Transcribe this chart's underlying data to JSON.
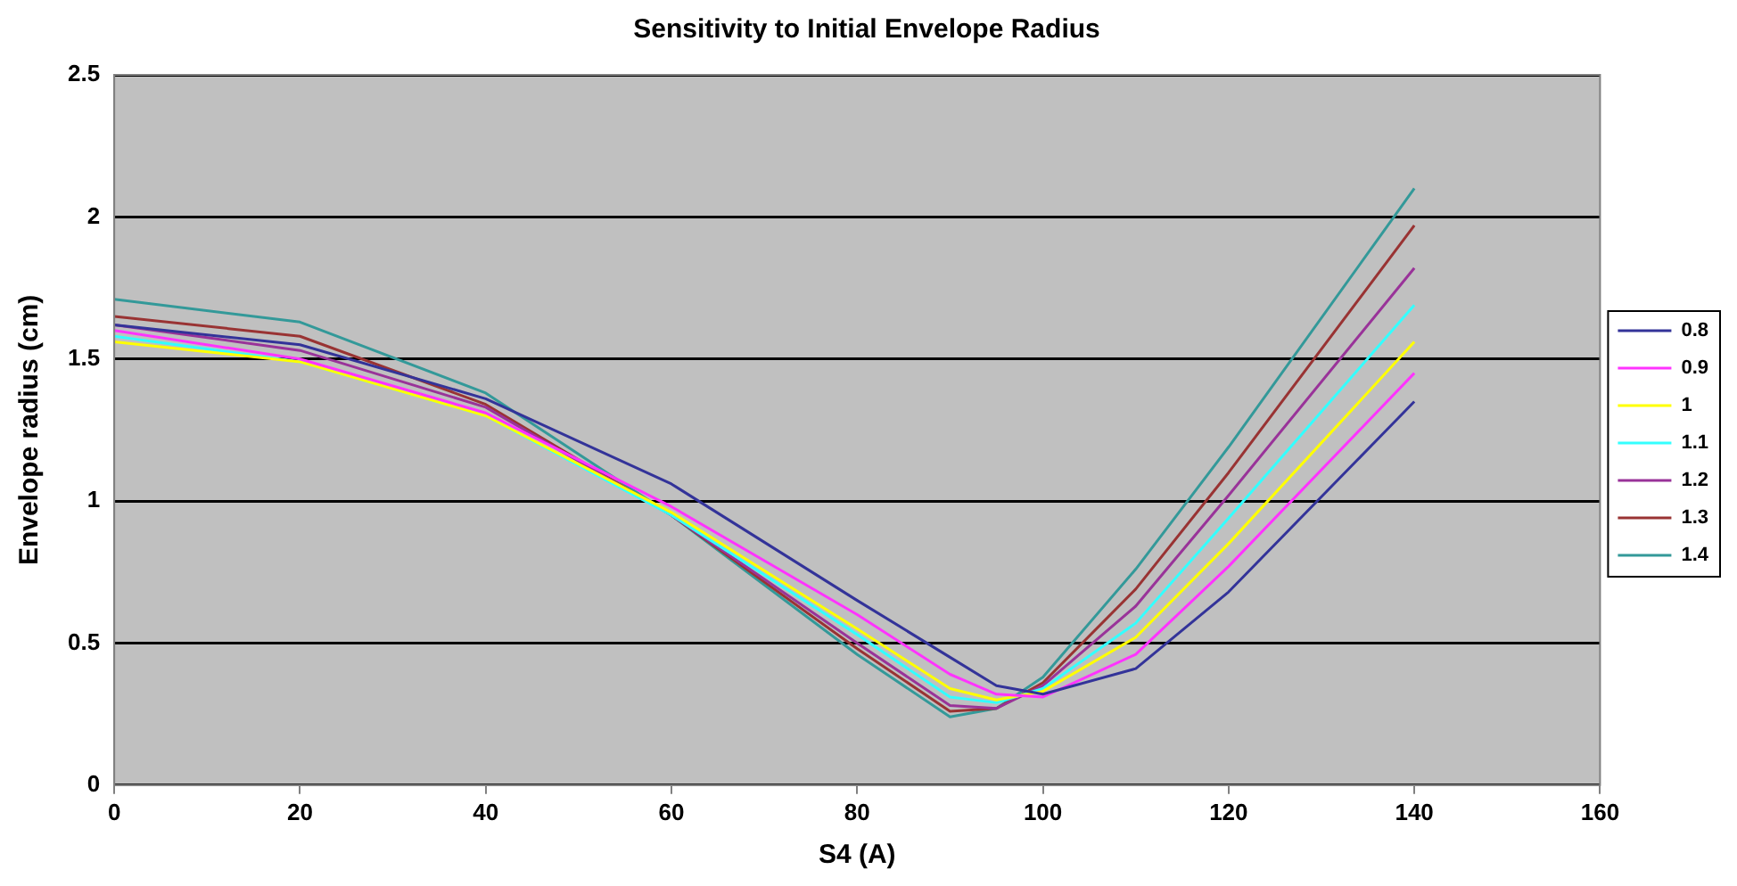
{
  "chart_data": {
    "type": "line",
    "title": "Sensitivity to Initial Envelope Radius",
    "xlabel": "S4 (A)",
    "ylabel": "Envelope radius (cm)",
    "x": [
      0,
      20,
      40,
      60,
      80,
      90,
      95,
      100,
      110,
      120,
      140
    ],
    "xlim": [
      0,
      160
    ],
    "xticks": [
      0,
      20,
      40,
      60,
      80,
      100,
      120,
      140,
      160
    ],
    "ylim": [
      0,
      2.5
    ],
    "yticks": [
      0,
      0.5,
      1,
      1.5,
      2,
      2.5
    ],
    "grid": "y",
    "legend": "right",
    "marker": "none",
    "line_style": "solid",
    "series": [
      {
        "name": "0.8",
        "color": "#333399",
        "values": [
          1.62,
          1.55,
          1.36,
          1.06,
          0.65,
          0.45,
          0.35,
          0.32,
          0.41,
          0.68,
          1.35
        ]
      },
      {
        "name": "0.9",
        "color": "#ff33ff",
        "values": [
          1.6,
          1.5,
          1.31,
          0.98,
          0.6,
          0.39,
          0.32,
          0.31,
          0.46,
          0.77,
          1.45
        ]
      },
      {
        "name": "1",
        "color": "#ffff00",
        "values": [
          1.56,
          1.49,
          1.3,
          0.96,
          0.55,
          0.34,
          0.3,
          0.33,
          0.52,
          0.85,
          1.56
        ]
      },
      {
        "name": "1.1",
        "color": "#33ffff",
        "values": [
          1.58,
          1.49,
          1.3,
          0.95,
          0.53,
          0.31,
          0.29,
          0.34,
          0.57,
          0.94,
          1.69
        ]
      },
      {
        "name": "1.2",
        "color": "#993399",
        "values": [
          1.62,
          1.53,
          1.33,
          0.95,
          0.5,
          0.28,
          0.27,
          0.35,
          0.63,
          1.02,
          1.82
        ]
      },
      {
        "name": "1.3",
        "color": "#993333",
        "values": [
          1.65,
          1.58,
          1.34,
          0.95,
          0.48,
          0.26,
          0.27,
          0.36,
          0.69,
          1.1,
          1.97
        ]
      },
      {
        "name": "1.4",
        "color": "#339999",
        "values": [
          1.71,
          1.63,
          1.38,
          0.95,
          0.46,
          0.24,
          0.27,
          0.38,
          0.76,
          1.19,
          2.1
        ]
      }
    ]
  }
}
